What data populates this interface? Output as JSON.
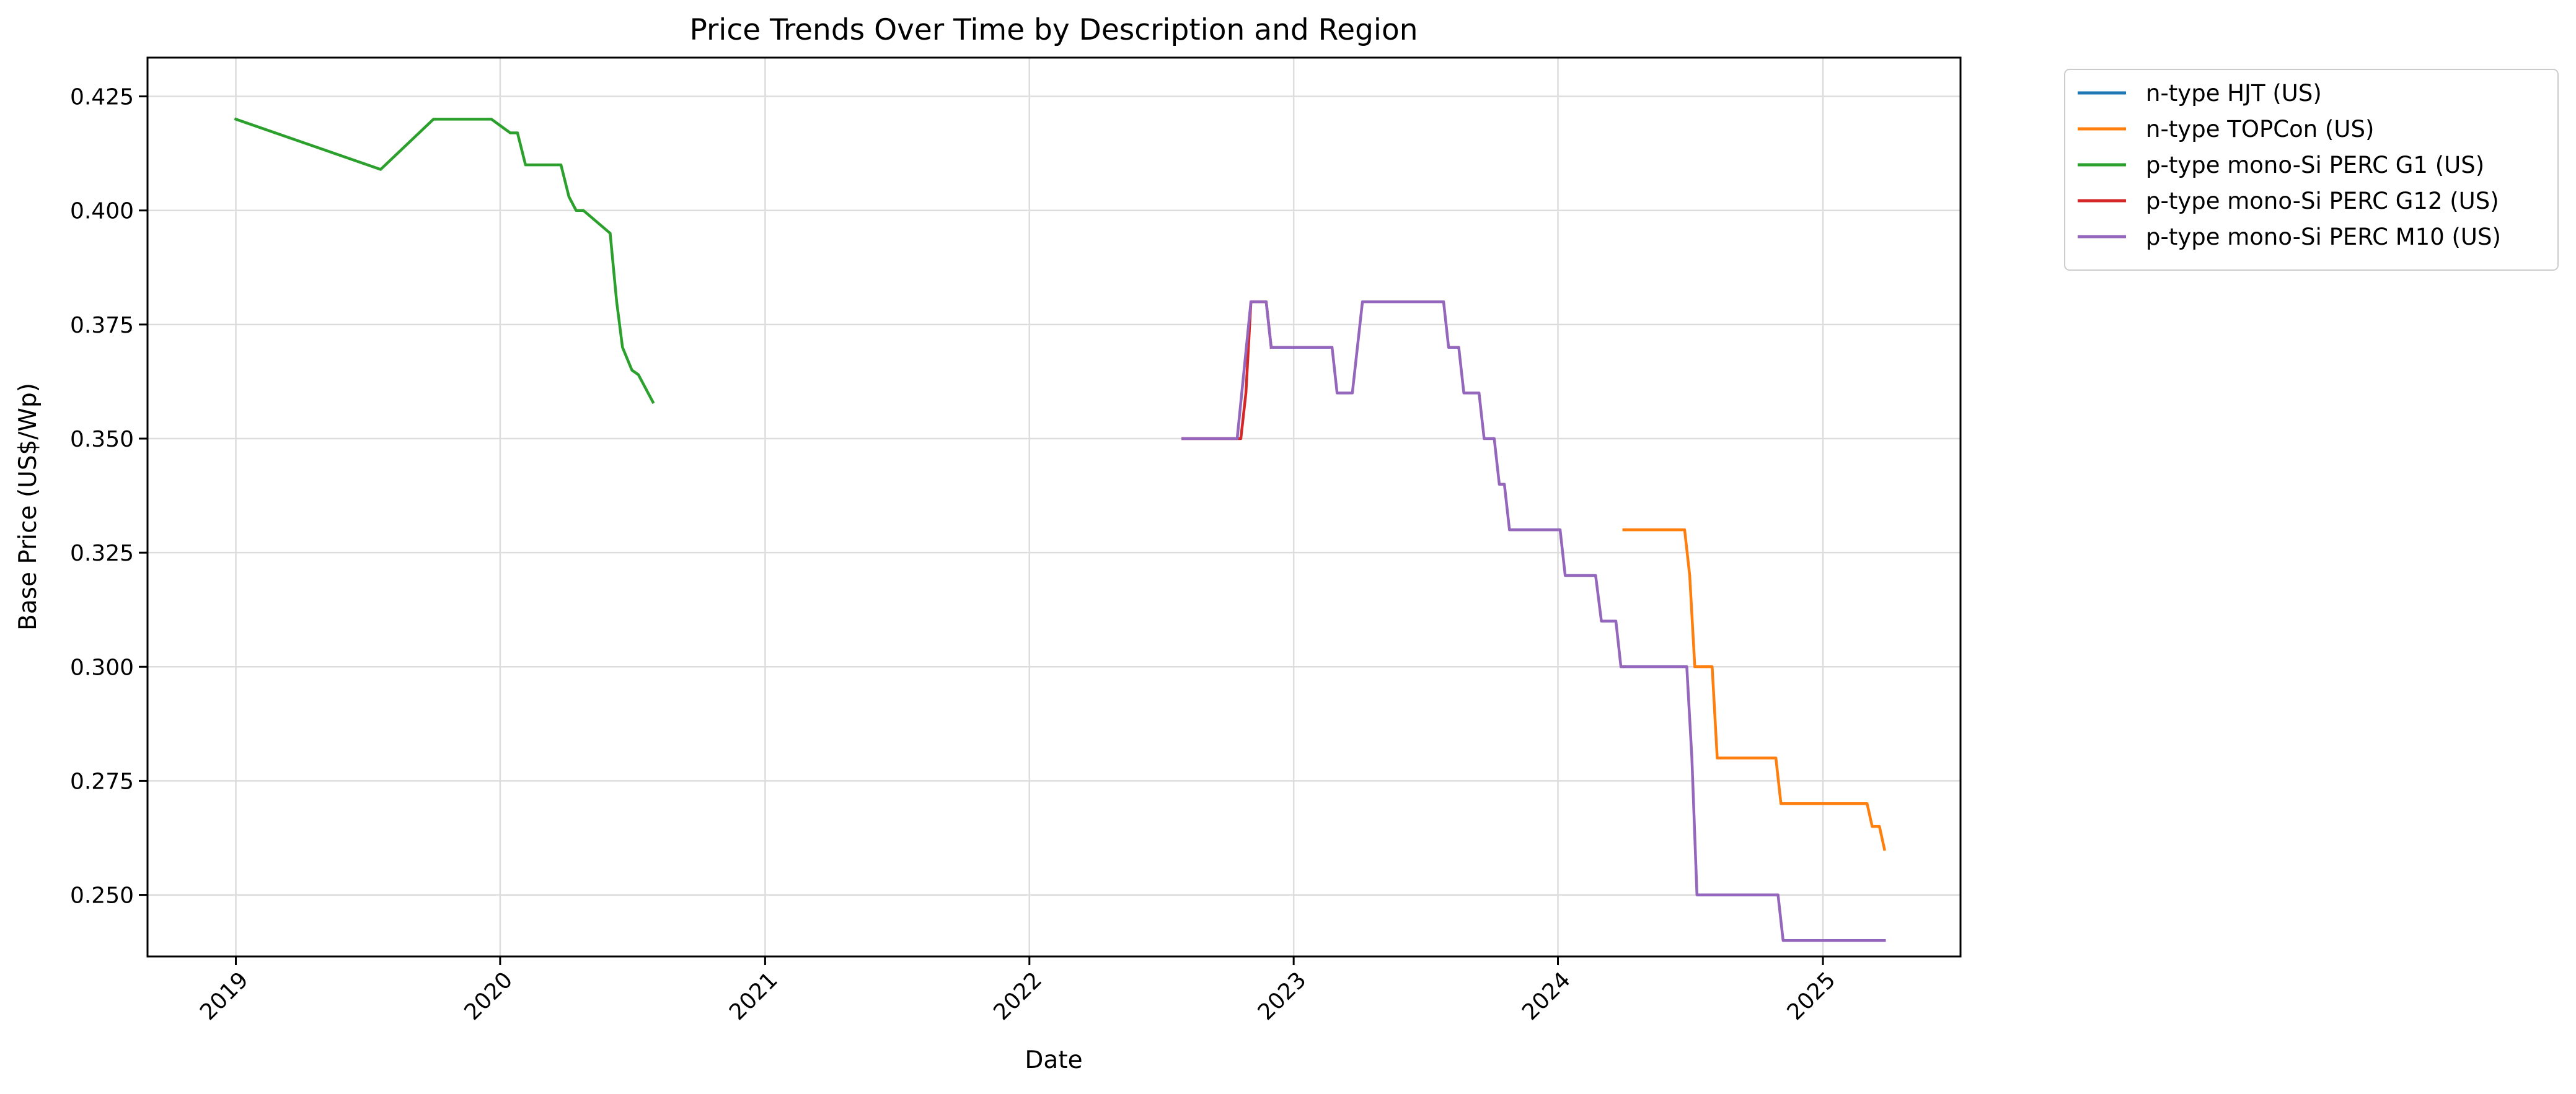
{
  "chart_data": {
    "type": "line",
    "title": "Price Trends Over Time by Description and Region",
    "xlabel": "Date",
    "ylabel": "Base Price (US$/Wp)",
    "x_ticks": [
      "2019",
      "2020",
      "2021",
      "2022",
      "2023",
      "2024",
      "2025"
    ],
    "y_ticks": [
      "0.250",
      "0.275",
      "0.300",
      "0.325",
      "0.350",
      "0.375",
      "0.400",
      "0.425"
    ],
    "xlim": [
      "2018-09-01",
      "2025-07-10"
    ],
    "ylim": [
      0.2365,
      0.4335
    ],
    "grid": true,
    "legend": {
      "placement": "outside-top-right",
      "entries": [
        "n-type HJT (US)",
        "n-type TOPCon (US)",
        "p-type mono-Si PERC G1 (US)",
        "p-type mono-Si PERC G12 (US)",
        "p-type mono-Si PERC M10 (US)"
      ]
    },
    "series": [
      {
        "name": "n-type HJT (US)",
        "color": "#1f77b4",
        "points": []
      },
      {
        "name": "n-type TOPCon (US)",
        "color": "#ff7f0e",
        "points": [
          [
            "2024-04-01",
            0.33
          ],
          [
            "2024-06-24",
            0.33
          ],
          [
            "2024-07-01",
            0.32
          ],
          [
            "2024-07-08",
            0.3
          ],
          [
            "2024-08-01",
            0.3
          ],
          [
            "2024-08-08",
            0.28
          ],
          [
            "2024-10-28",
            0.28
          ],
          [
            "2024-11-04",
            0.27
          ],
          [
            "2025-03-03",
            0.27
          ],
          [
            "2025-03-10",
            0.265
          ],
          [
            "2025-03-20",
            0.265
          ],
          [
            "2025-03-27",
            0.26
          ]
        ]
      },
      {
        "name": "p-type mono-Si PERC G1 (US)",
        "color": "#2ca02c",
        "points": [
          [
            "2019-01-01",
            0.42
          ],
          [
            "2019-07-20",
            0.409
          ],
          [
            "2019-10-01",
            0.42
          ],
          [
            "2019-12-20",
            0.42
          ],
          [
            "2020-01-15",
            0.417
          ],
          [
            "2020-01-25",
            0.417
          ],
          [
            "2020-02-05",
            0.41
          ],
          [
            "2020-03-25",
            0.41
          ],
          [
            "2020-04-05",
            0.403
          ],
          [
            "2020-04-15",
            0.4
          ],
          [
            "2020-04-25",
            0.4
          ],
          [
            "2020-06-01",
            0.395
          ],
          [
            "2020-06-10",
            0.38
          ],
          [
            "2020-06-18",
            0.37
          ],
          [
            "2020-07-01",
            0.365
          ],
          [
            "2020-07-10",
            0.364
          ],
          [
            "2020-07-30",
            0.358
          ]
        ]
      },
      {
        "name": "p-type mono-Si PERC G12 (US)",
        "color": "#d62728",
        "points": [
          [
            "2022-08-01",
            0.35
          ],
          [
            "2022-10-20",
            0.35
          ],
          [
            "2022-10-27",
            0.36
          ],
          [
            "2022-11-03",
            0.38
          ],
          [
            "2022-11-24",
            0.38
          ],
          [
            "2022-12-01",
            0.37
          ]
        ]
      },
      {
        "name": "p-type mono-Si PERC M10 (US)",
        "color": "#9467bd",
        "points": [
          [
            "2022-08-01",
            0.35
          ],
          [
            "2022-10-15",
            0.35
          ],
          [
            "2022-11-03",
            0.38
          ],
          [
            "2022-11-24",
            0.38
          ],
          [
            "2022-12-01",
            0.37
          ],
          [
            "2023-02-23",
            0.37
          ],
          [
            "2023-03-02",
            0.36
          ],
          [
            "2023-03-23",
            0.36
          ],
          [
            "2023-04-06",
            0.38
          ],
          [
            "2023-07-27",
            0.38
          ],
          [
            "2023-08-03",
            0.37
          ],
          [
            "2023-08-17",
            0.37
          ],
          [
            "2023-08-24",
            0.36
          ],
          [
            "2023-09-14",
            0.36
          ],
          [
            "2023-09-21",
            0.35
          ],
          [
            "2023-10-05",
            0.35
          ],
          [
            "2023-10-12",
            0.34
          ],
          [
            "2023-10-19",
            0.34
          ],
          [
            "2023-10-26",
            0.33
          ],
          [
            "2024-01-04",
            0.33
          ],
          [
            "2024-01-11",
            0.32
          ],
          [
            "2024-02-22",
            0.32
          ],
          [
            "2024-03-01",
            0.31
          ],
          [
            "2024-03-21",
            0.31
          ],
          [
            "2024-03-28",
            0.3
          ],
          [
            "2024-06-27",
            0.3
          ],
          [
            "2024-07-04",
            0.28
          ],
          [
            "2024-07-11",
            0.25
          ],
          [
            "2024-10-31",
            0.25
          ],
          [
            "2024-11-07",
            0.24
          ],
          [
            "2025-03-27",
            0.24
          ]
        ]
      }
    ]
  }
}
